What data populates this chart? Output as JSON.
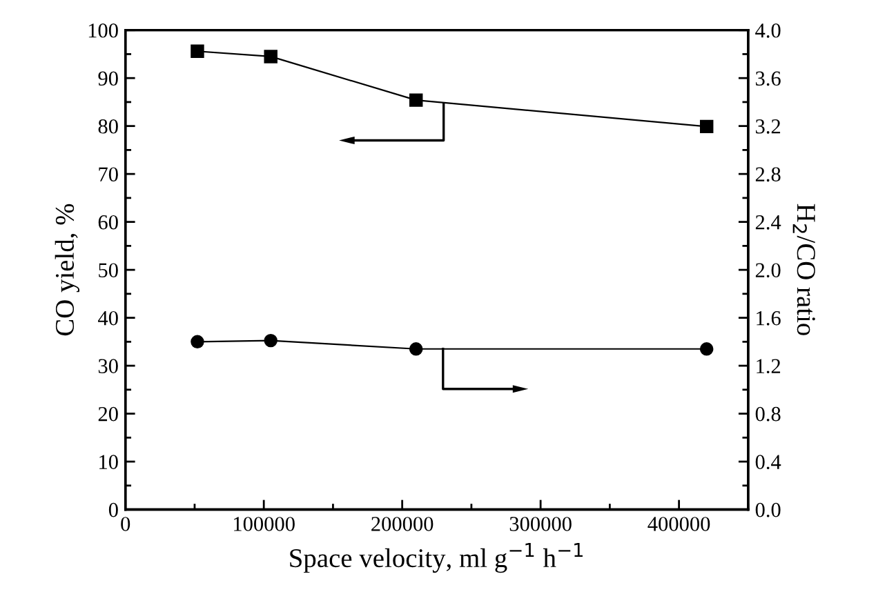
{
  "chart_data": {
    "type": "line",
    "xlabel": "Space velocity, ml g$^{−1}$ h$^{−1}$",
    "ylabel": "CO yield, %",
    "y2label": "H$_{2}$/CO ratio",
    "x": [
      52000,
      105000,
      210000,
      420000
    ],
    "series": [
      {
        "color": "#000000",
        "marker": "square",
        "values": [
          95.6,
          94.5,
          85.4,
          79.9
        ]
      },
      {
        "color": "#000000",
        "marker": "circle",
        "axis": "y2",
        "values": [
          1.4,
          1.41,
          1.34,
          1.34
        ]
      }
    ],
    "xlim": [
      0,
      450000
    ],
    "xticks": [
      0,
      100000,
      200000,
      300000,
      400000
    ],
    "ylim": [
      0,
      100
    ],
    "yticks": [
      0,
      10,
      20,
      30,
      40,
      50,
      60,
      70,
      80,
      90,
      100
    ],
    "y2lim": [
      0.0,
      4.0
    ],
    "y2ticks": [
      {
        "value": 0,
        "label": "0.0"
      },
      0.4,
      0.8,
      1.2,
      1.6,
      {
        "value": 2,
        "label": "2.0"
      },
      2.4,
      2.8,
      3.2,
      3.6,
      {
        "value": 4,
        "label": "4.0"
      }
    ],
    "grid": false,
    "line_style": "solid"
  }
}
